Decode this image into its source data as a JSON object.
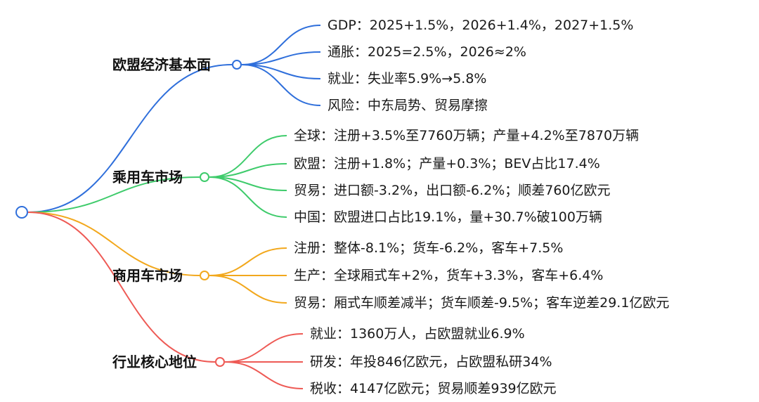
{
  "diagram": {
    "root": {
      "color": "#2f6fdb"
    },
    "branches": [
      {
        "label": "欧盟经济基本面",
        "color": "#2f6fdb",
        "leaves": [
          "GDP：2025+1.5%，2026+1.4%，2027+1.5%",
          "通胀：2025=2.5%，2026≈2%",
          "就业：失业率5.9%→5.8%",
          "风险：中东局势、贸易摩擦"
        ]
      },
      {
        "label": "乘用车市场",
        "color": "#3ecb6b",
        "leaves": [
          "全球：注册+3.5%至7760万辆；产量+4.2%至7870万辆",
          "欧盟：注册+1.8%；产量+0.3%；BEV占比17.4%",
          "贸易：进口额-3.2%，出口额-6.2%；顺差760亿欧元",
          "中国：欧盟进口占比19.1%，量+30.7%破100万辆"
        ]
      },
      {
        "label": "商用车市场",
        "color": "#f2a81d",
        "leaves": [
          "注册：整体-8.1%；货车-6.2%，客车+7.5%",
          "生产：全球厢式车+2%，货车+3.3%，客车+6.4%",
          "贸易：厢式车顺差减半；货车顺差-9.5%；客车逆差29.1亿欧元"
        ]
      },
      {
        "label": "行业核心地位",
        "color": "#ee5a55",
        "leaves": [
          "就业：1360万人，占欧盟就业6.9%",
          "研发：年投846亿欧元，占欧盟私研34%",
          "税收：4147亿欧元；贸易顺差939亿欧元"
        ]
      }
    ]
  }
}
